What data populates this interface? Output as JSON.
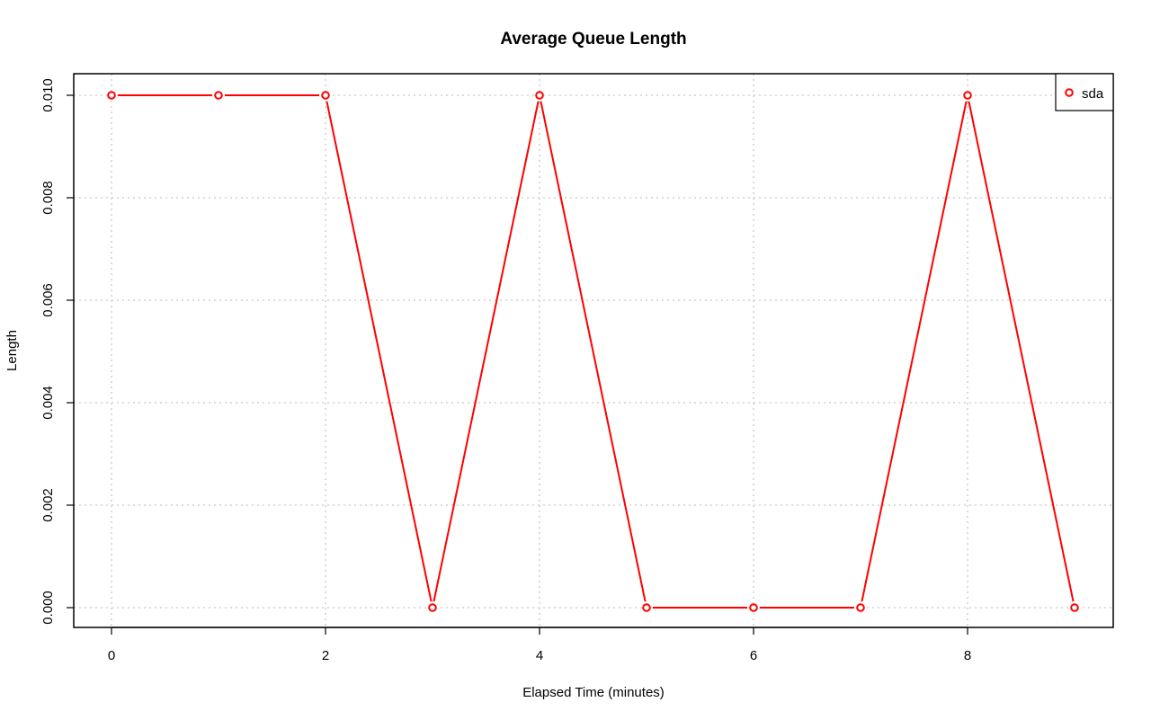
{
  "chart_data": {
    "type": "line",
    "title": "Average Queue Length",
    "xlabel": "Elapsed Time (minutes)",
    "ylabel": "Length",
    "x": [
      0,
      1,
      2,
      3,
      4,
      5,
      6,
      7,
      8,
      9
    ],
    "xlim": [
      0,
      9
    ],
    "ylim": [
      0,
      0.01
    ],
    "x_ticks": [
      0,
      2,
      4,
      6,
      8
    ],
    "x_tick_labels": [
      "0",
      "2",
      "4",
      "6",
      "8"
    ],
    "y_ticks": [
      0,
      0.002,
      0.004,
      0.006,
      0.008,
      0.01
    ],
    "y_tick_labels": [
      "0.000",
      "0.002",
      "0.004",
      "0.006",
      "0.008",
      "0.010"
    ],
    "grid": true,
    "legend_position": "top-right",
    "series": [
      {
        "name": "sda",
        "color": "#ff0000",
        "marker": "circle-open",
        "values": [
          0.01,
          0.01,
          0.01,
          0,
          0.01,
          0,
          0,
          0,
          0.01,
          0
        ]
      }
    ]
  }
}
